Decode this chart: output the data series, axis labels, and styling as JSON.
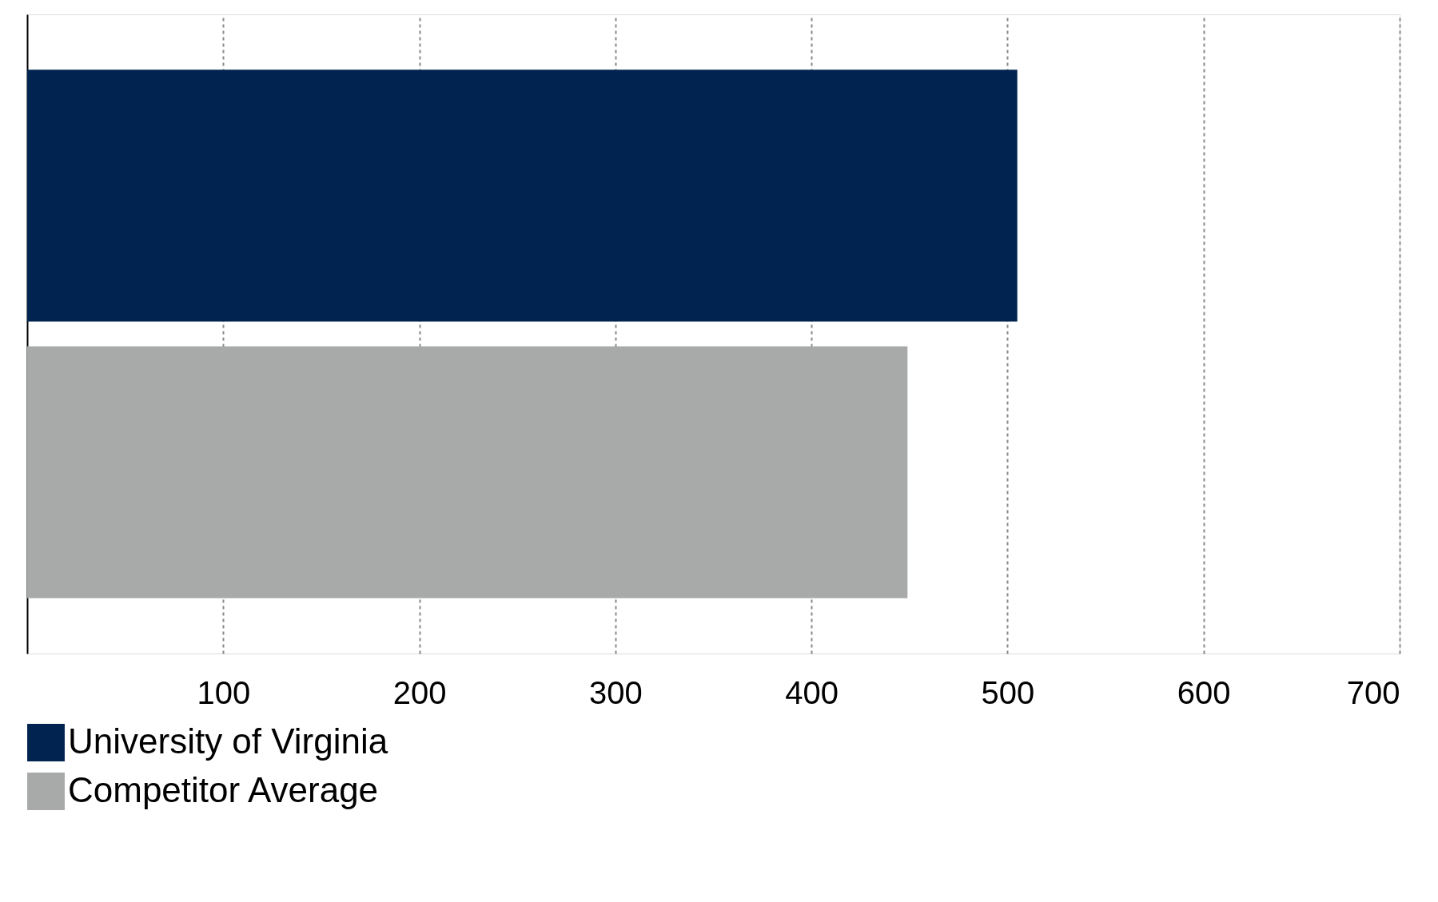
{
  "chart_data": {
    "type": "bar",
    "orientation": "horizontal",
    "categories": [
      null
    ],
    "series": [
      {
        "name": "University of Virginia",
        "color": "#00244f",
        "values": [
          505
        ]
      },
      {
        "name": "Competitor Average",
        "color": "#a7aaa9",
        "values": [
          449
        ]
      }
    ],
    "xlim": [
      0,
      700
    ],
    "xticks": [
      100,
      200,
      300,
      400,
      500,
      600,
      700
    ],
    "grid": "x",
    "legend": "bottom"
  }
}
